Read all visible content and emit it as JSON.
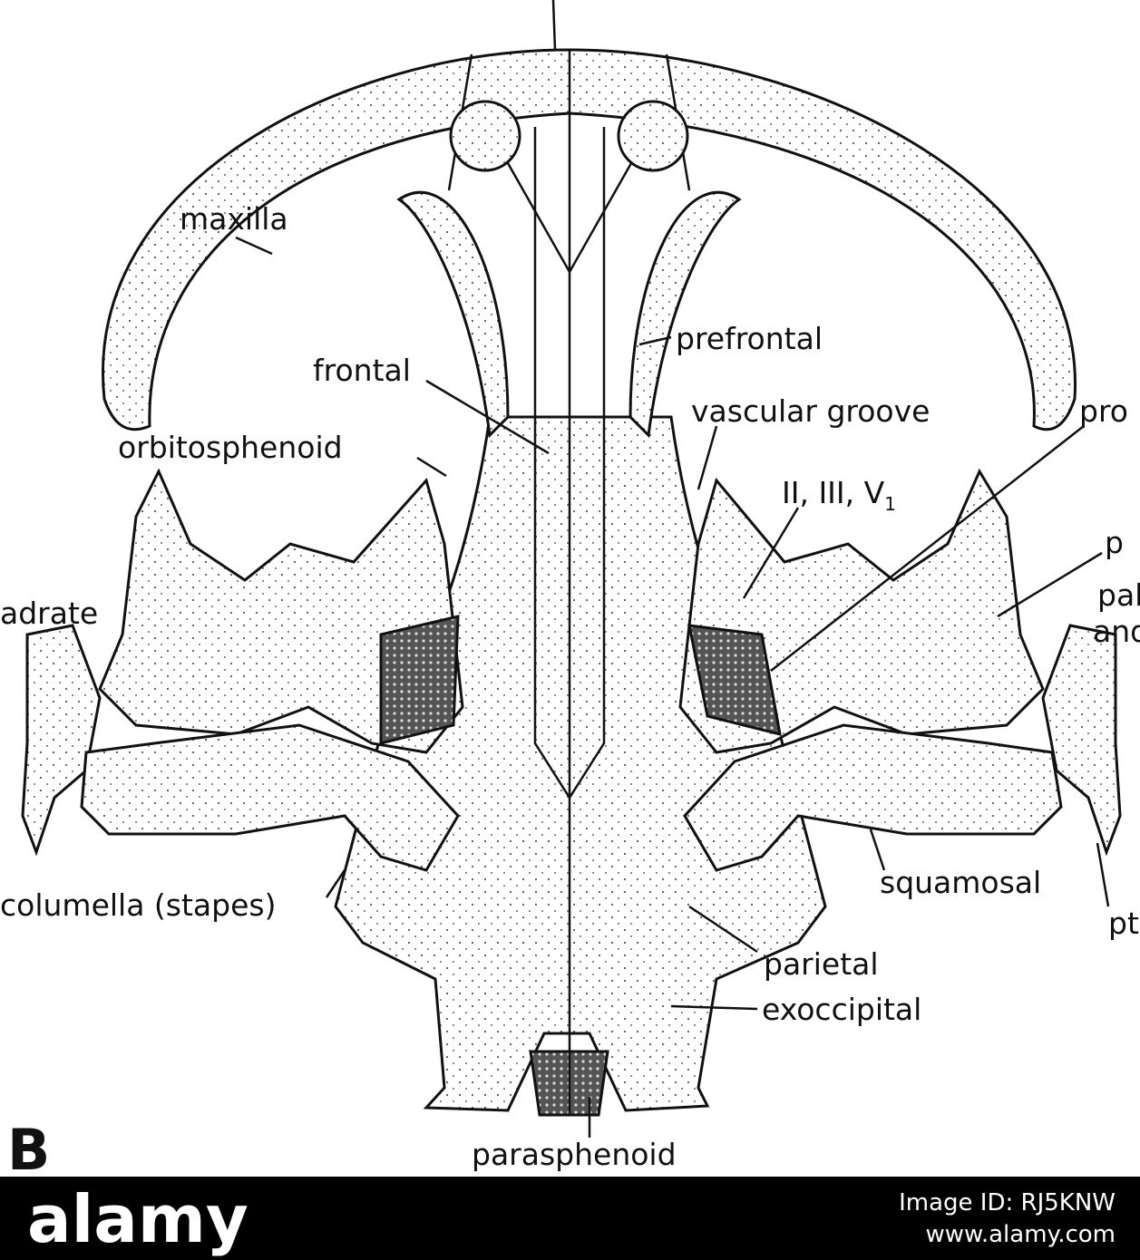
{
  "figure": {
    "panel": "B",
    "labels": [
      "maxilla",
      "prefrontal",
      "frontal",
      "vascular groove",
      "pro",
      "orbitosphenoid",
      "p",
      "pala",
      "and",
      "adrate",
      "squamosal",
      "columella (stapes)",
      "pt",
      "parietal",
      "exoccipital",
      "parasphenoid"
    ],
    "nerves": {
      "text": "II, III, V",
      "subscript": "1"
    }
  },
  "watermark": {
    "logo": "alamy",
    "image_id": "Image ID: RJ5KNW",
    "url": "www.alamy.com"
  }
}
